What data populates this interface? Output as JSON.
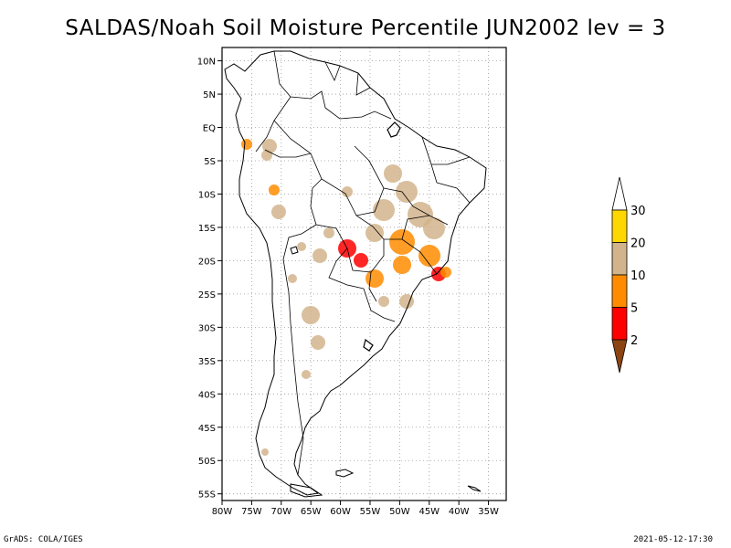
{
  "title": "SALDAS/Noah Soil Moisture Percentile JUN2002 lev = 3",
  "footer": {
    "left": "GrADS: COLA/IGES",
    "right": "2021-05-12-17:30"
  },
  "map": {
    "lon_range": [
      -80,
      -32
    ],
    "lat_range": [
      -56,
      12
    ],
    "lat_ticks": [
      {
        "value": 10,
        "label": "10N"
      },
      {
        "value": 5,
        "label": "5N"
      },
      {
        "value": 0,
        "label": "EQ"
      },
      {
        "value": -5,
        "label": "5S"
      },
      {
        "value": -10,
        "label": "10S"
      },
      {
        "value": -15,
        "label": "15S"
      },
      {
        "value": -20,
        "label": "20S"
      },
      {
        "value": -25,
        "label": "25S"
      },
      {
        "value": -30,
        "label": "30S"
      },
      {
        "value": -35,
        "label": "35S"
      },
      {
        "value": -40,
        "label": "40S"
      },
      {
        "value": -45,
        "label": "45S"
      },
      {
        "value": -50,
        "label": "50S"
      },
      {
        "value": -55,
        "label": "55S"
      }
    ],
    "lon_ticks": [
      {
        "value": -80,
        "label": "80W"
      },
      {
        "value": -75,
        "label": "75W"
      },
      {
        "value": -70,
        "label": "70W"
      },
      {
        "value": -65,
        "label": "65W"
      },
      {
        "value": -60,
        "label": "60W"
      },
      {
        "value": -55,
        "label": "55W"
      },
      {
        "value": -50,
        "label": "50W"
      },
      {
        "value": -45,
        "label": "45W"
      },
      {
        "value": -40,
        "label": "40W"
      },
      {
        "value": -35,
        "label": "35W"
      }
    ],
    "grid": true
  },
  "colorbar": {
    "levels": [
      "2",
      "5",
      "10",
      "20",
      "30"
    ],
    "colors": [
      "#8b4513",
      "#ff0000",
      "#ff8c00",
      "#d2b48c",
      "#ffd700",
      "#ffffff"
    ]
  }
}
